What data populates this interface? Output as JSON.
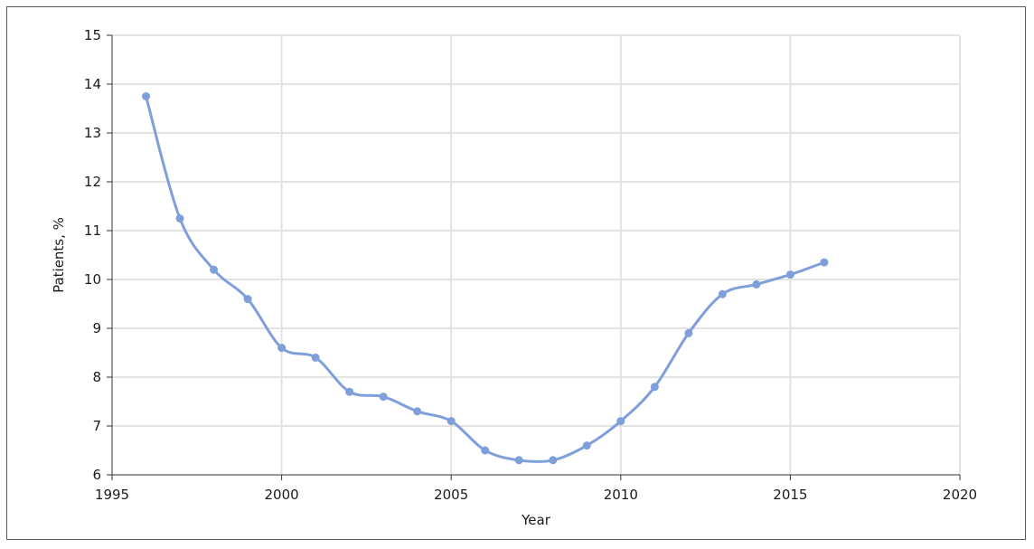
{
  "chart_data": {
    "type": "line",
    "title": "",
    "xlabel": "Year",
    "ylabel": "Patients, %",
    "xlim": [
      1995,
      2020
    ],
    "ylim": [
      6,
      15
    ],
    "x_ticks": [
      1995,
      2000,
      2005,
      2010,
      2015,
      2020
    ],
    "y_ticks": [
      6,
      7,
      8,
      9,
      10,
      11,
      12,
      13,
      14,
      15
    ],
    "grid": true,
    "smooth": true,
    "colors": {
      "series": "#7f9fdb",
      "grid": "#e3e3e3",
      "axis": "#333333"
    },
    "series": [
      {
        "x": [
          1996,
          1997,
          1998,
          1999,
          2000,
          2001,
          2002,
          2003,
          2004,
          2005,
          2006,
          2007,
          2008,
          2009,
          2010,
          2011,
          2012,
          2013,
          2014,
          2015,
          2016
        ],
        "y": [
          13.75,
          11.25,
          10.2,
          9.6,
          8.6,
          8.4,
          7.7,
          7.6,
          7.3,
          7.1,
          6.5,
          6.3,
          6.3,
          6.6,
          7.1,
          7.8,
          8.9,
          9.7,
          9.9,
          10.1,
          10.35
        ]
      }
    ]
  }
}
